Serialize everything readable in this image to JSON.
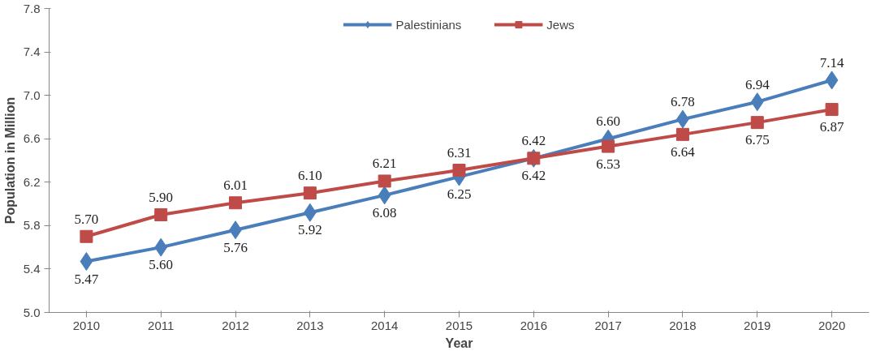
{
  "chart_data": {
    "type": "line",
    "xlabel": "Year",
    "ylabel": "Population in Million",
    "categories": [
      "2010",
      "2011",
      "2012",
      "2013",
      "2014",
      "2015",
      "2016",
      "2017",
      "2018",
      "2019",
      "2020"
    ],
    "ylim": [
      5.0,
      7.8
    ],
    "yticks": [
      {
        "value": 5.0,
        "label": "5.0"
      },
      5.4,
      5.8,
      6.2,
      6.6,
      {
        "value": 7.0,
        "label": "7.0"
      },
      7.4,
      7.8
    ],
    "grid": false,
    "legend": "top",
    "line_style": "solid",
    "series": [
      {
        "name": "Palestinians",
        "color": "#4a7ebb",
        "marker": "diamond",
        "values": [
          5.47,
          5.6,
          5.76,
          5.92,
          6.08,
          6.25,
          6.42,
          6.6,
          6.78,
          6.94,
          7.14
        ],
        "value_labels": [
          "5.47",
          "5.60",
          "5.76",
          "5.92",
          "6.08",
          "6.25",
          "6.42",
          "6.60",
          "6.78",
          "6.94",
          "7.14"
        ]
      },
      {
        "name": "Jews",
        "color": "#be4b48",
        "marker": "square",
        "values": [
          5.7,
          5.9,
          6.01,
          6.1,
          6.21,
          6.31,
          6.42,
          6.53,
          6.64,
          6.75,
          6.87
        ],
        "value_labels": [
          "5.70",
          "5.90",
          "6.01",
          "6.10",
          "6.21",
          "6.31",
          "6.42",
          "6.53",
          "6.64",
          "6.75",
          "6.87"
        ]
      }
    ]
  }
}
